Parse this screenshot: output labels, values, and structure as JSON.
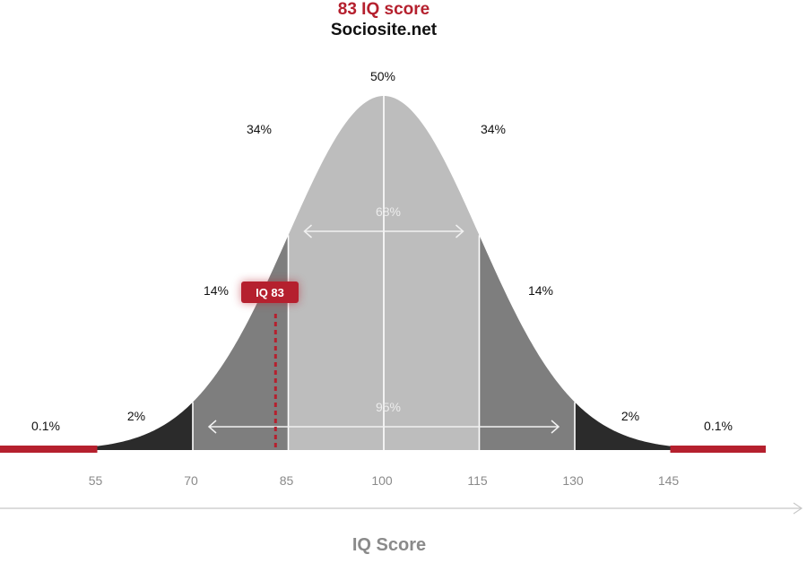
{
  "chart_data": {
    "type": "area",
    "title": "83 IQ score",
    "subtitle": "Sociosite.net",
    "xlabel": "IQ Score",
    "x_ticks": [
      55,
      70,
      85,
      100,
      115,
      130,
      145
    ],
    "bands": [
      {
        "from": 40,
        "to": 55,
        "label": "0.1%",
        "color": "#b5202e"
      },
      {
        "from": 55,
        "to": 70,
        "label": "2%",
        "color": "#2b2b2b"
      },
      {
        "from": 70,
        "to": 85,
        "label": "14%",
        "color": "#7e7e7e"
      },
      {
        "from": 85,
        "to": 100,
        "label": "34%",
        "color": "#bdbdbd"
      },
      {
        "from": 100,
        "to": 115,
        "label": "34%",
        "color": "#bdbdbd"
      },
      {
        "from": 115,
        "to": 130,
        "label": "14%",
        "color": "#7e7e7e"
      },
      {
        "from": 130,
        "to": 145,
        "label": "2%",
        "color": "#2b2b2b"
      },
      {
        "from": 145,
        "to": 160,
        "label": "0.1%",
        "color": "#b5202e"
      }
    ],
    "peak_label": "50%",
    "spans": [
      {
        "from": 85,
        "to": 115,
        "label": "68%"
      },
      {
        "from": 70,
        "to": 130,
        "label": "95%"
      }
    ],
    "marker": {
      "value": 83,
      "label": "IQ 83",
      "color": "#b5202e"
    },
    "mean": 100,
    "sd": 15
  }
}
